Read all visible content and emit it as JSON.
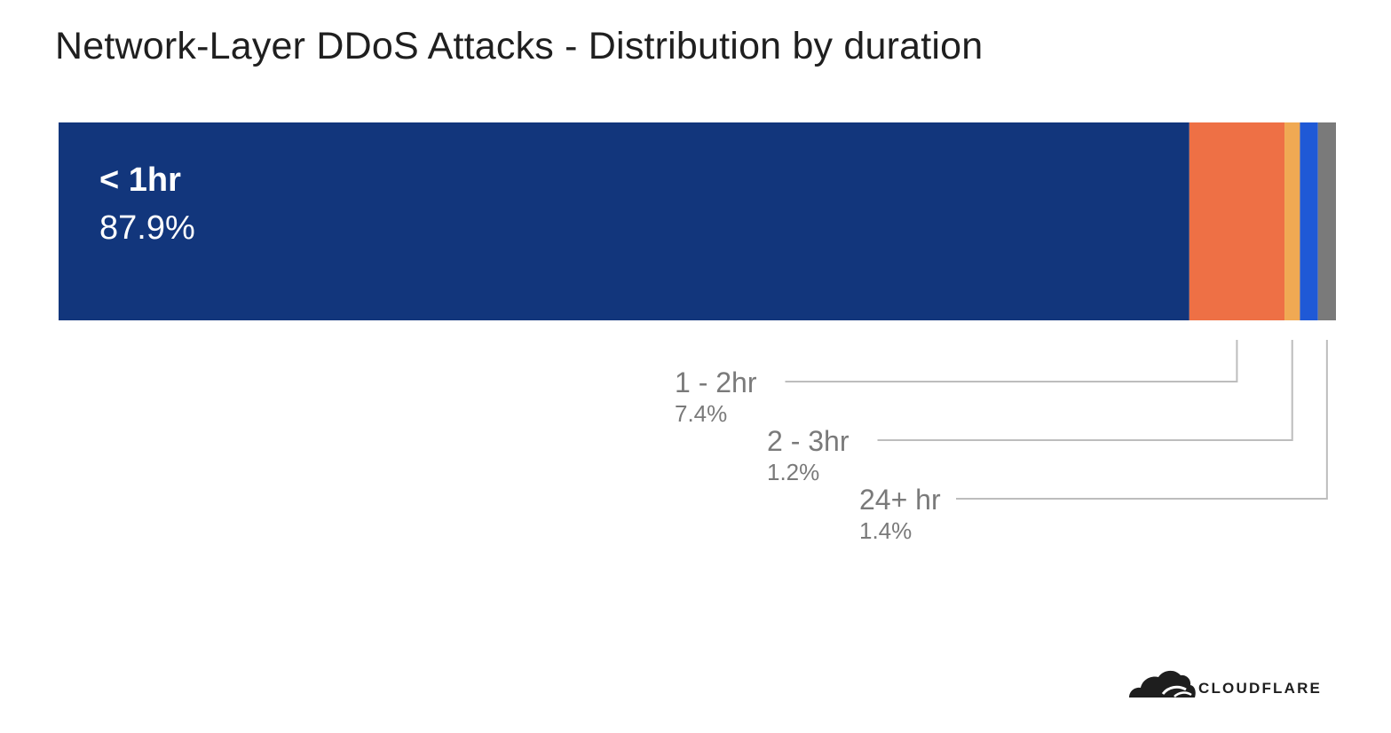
{
  "chart_data": {
    "type": "bar",
    "orientation": "horizontal-stacked",
    "title": "Network-Layer DDoS Attacks - Distribution by duration",
    "segments": [
      {
        "name": "< 1hr",
        "value": 87.9,
        "value_label": "87.9%",
        "color": "#12367c",
        "label_style": "inside"
      },
      {
        "name": "1 - 2hr",
        "value": 7.4,
        "value_label": "7.4%",
        "color": "#ee7045",
        "label_style": "callout"
      },
      {
        "name": "2 - 3hr",
        "value": 1.2,
        "value_label": "1.2%",
        "color": "#f0a953",
        "label_style": "callout"
      },
      {
        "name": "",
        "value": 1.4,
        "value_label": "",
        "color": "#1f59d6",
        "label_style": "none"
      },
      {
        "name": "24+ hr",
        "value": 1.4,
        "value_label": "1.4%",
        "color": "#7a7a7a",
        "label_style": "callout"
      }
    ],
    "total": 100,
    "grid": false,
    "legend": "none"
  },
  "branding": {
    "logo_text": "CLOUDFLARE"
  }
}
